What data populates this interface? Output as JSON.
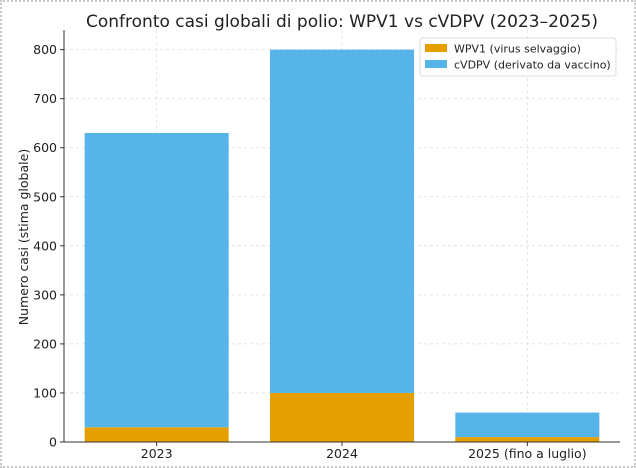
{
  "chart_data": {
    "type": "bar",
    "stacked": true,
    "title": "Confronto casi globali di polio: WPV1 vs cVDPV (2023–2025)",
    "xlabel": "",
    "ylabel": "Numero casi (stima globale)",
    "categories": [
      "2023",
      "2024",
      "2025 (fino a luglio)"
    ],
    "series": [
      {
        "name": "WPV1 (virus selvaggio)",
        "color": "#E69F00",
        "values": [
          30,
          100,
          10
        ]
      },
      {
        "name": "cVDPV (derivato da vaccino)",
        "color": "#56B4E9",
        "values": [
          600,
          700,
          50
        ]
      }
    ],
    "ylim": [
      0,
      840
    ],
    "yticks": [
      0,
      100,
      200,
      300,
      400,
      500,
      600,
      700,
      800
    ],
    "grid": true,
    "legend": "top-right"
  }
}
